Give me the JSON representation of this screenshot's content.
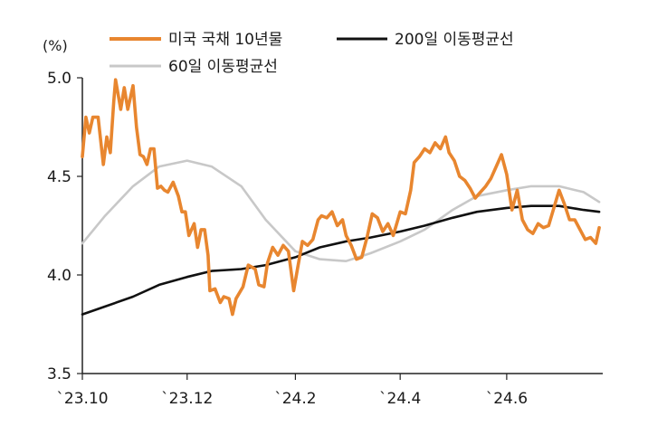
{
  "chart_data": {
    "type": "line",
    "unit_label": "(%)",
    "xlabel": "",
    "ylabel": "",
    "ylim": [
      3.5,
      5.0
    ],
    "yticks": [
      "5.0",
      "4.5",
      "4.0",
      "3.5"
    ],
    "ytick_values": [
      5.0,
      4.5,
      4.0,
      3.5
    ],
    "xlim": [
      "2023-10-02",
      "2024-07-26"
    ],
    "xticks": [
      {
        "label": "`23.10",
        "date": "2023-10-02"
      },
      {
        "label": "`23.12",
        "date": "2023-12-01"
      },
      {
        "label": "`24.2",
        "date": "2024-02-01"
      },
      {
        "label": "`24.4",
        "date": "2024-04-01"
      },
      {
        "label": "`24.6",
        "date": "2024-06-01"
      }
    ],
    "grid": false,
    "legend_position": "top",
    "series": [
      {
        "name": "미국 국채 10년물",
        "color": "#e8862f",
        "points": [
          [
            "2023-10-02",
            4.6
          ],
          [
            "2023-10-04",
            4.8
          ],
          [
            "2023-10-06",
            4.72
          ],
          [
            "2023-10-08",
            4.8
          ],
          [
            "2023-10-11",
            4.8
          ],
          [
            "2023-10-14",
            4.56
          ],
          [
            "2023-10-16",
            4.7
          ],
          [
            "2023-10-18",
            4.62
          ],
          [
            "2023-10-20",
            4.88
          ],
          [
            "2023-10-21",
            4.99
          ],
          [
            "2023-10-24",
            4.84
          ],
          [
            "2023-10-26",
            4.95
          ],
          [
            "2023-10-28",
            4.84
          ],
          [
            "2023-10-31",
            4.96
          ],
          [
            "2023-11-02",
            4.75
          ],
          [
            "2023-11-04",
            4.61
          ],
          [
            "2023-11-06",
            4.6
          ],
          [
            "2023-11-08",
            4.56
          ],
          [
            "2023-11-10",
            4.64
          ],
          [
            "2023-11-12",
            4.64
          ],
          [
            "2023-11-14",
            4.44
          ],
          [
            "2023-11-16",
            4.45
          ],
          [
            "2023-11-18",
            4.43
          ],
          [
            "2023-11-20",
            4.42
          ],
          [
            "2023-11-23",
            4.47
          ],
          [
            "2023-11-26",
            4.4
          ],
          [
            "2023-11-28",
            4.32
          ],
          [
            "2023-11-30",
            4.32
          ],
          [
            "2023-12-02",
            4.2
          ],
          [
            "2023-12-05",
            4.26
          ],
          [
            "2023-12-07",
            4.14
          ],
          [
            "2023-12-09",
            4.23
          ],
          [
            "2023-12-11",
            4.23
          ],
          [
            "2023-12-13",
            4.1
          ],
          [
            "2023-12-14",
            3.92
          ],
          [
            "2023-12-17",
            3.93
          ],
          [
            "2023-12-20",
            3.86
          ],
          [
            "2023-12-22",
            3.89
          ],
          [
            "2023-12-25",
            3.88
          ],
          [
            "2023-12-27",
            3.8
          ],
          [
            "2023-12-29",
            3.88
          ],
          [
            "2024-01-02",
            3.94
          ],
          [
            "2024-01-05",
            4.05
          ],
          [
            "2024-01-09",
            4.03
          ],
          [
            "2024-01-11",
            3.95
          ],
          [
            "2024-01-14",
            3.94
          ],
          [
            "2024-01-16",
            4.06
          ],
          [
            "2024-01-19",
            4.14
          ],
          [
            "2024-01-22",
            4.1
          ],
          [
            "2024-01-25",
            4.15
          ],
          [
            "2024-01-28",
            4.12
          ],
          [
            "2024-01-31",
            3.92
          ],
          [
            "2024-02-02",
            4.02
          ],
          [
            "2024-02-05",
            4.17
          ],
          [
            "2024-02-08",
            4.15
          ],
          [
            "2024-02-11",
            4.18
          ],
          [
            "2024-02-14",
            4.28
          ],
          [
            "2024-02-16",
            4.3
          ],
          [
            "2024-02-19",
            4.29
          ],
          [
            "2024-02-22",
            4.32
          ],
          [
            "2024-02-25",
            4.25
          ],
          [
            "2024-02-28",
            4.28
          ],
          [
            "2024-03-01",
            4.2
          ],
          [
            "2024-03-04",
            4.15
          ],
          [
            "2024-03-07",
            4.08
          ],
          [
            "2024-03-10",
            4.09
          ],
          [
            "2024-03-13",
            4.19
          ],
          [
            "2024-03-16",
            4.31
          ],
          [
            "2024-03-19",
            4.29
          ],
          [
            "2024-03-22",
            4.22
          ],
          [
            "2024-03-25",
            4.26
          ],
          [
            "2024-03-28",
            4.2
          ],
          [
            "2024-04-01",
            4.32
          ],
          [
            "2024-04-04",
            4.31
          ],
          [
            "2024-04-07",
            4.43
          ],
          [
            "2024-04-09",
            4.57
          ],
          [
            "2024-04-12",
            4.6
          ],
          [
            "2024-04-15",
            4.64
          ],
          [
            "2024-04-18",
            4.62
          ],
          [
            "2024-04-21",
            4.67
          ],
          [
            "2024-04-24",
            4.64
          ],
          [
            "2024-04-27",
            4.7
          ],
          [
            "2024-04-29",
            4.62
          ],
          [
            "2024-05-02",
            4.58
          ],
          [
            "2024-05-05",
            4.5
          ],
          [
            "2024-05-08",
            4.48
          ],
          [
            "2024-05-11",
            4.44
          ],
          [
            "2024-05-14",
            4.39
          ],
          [
            "2024-05-17",
            4.42
          ],
          [
            "2024-05-20",
            4.45
          ],
          [
            "2024-05-23",
            4.49
          ],
          [
            "2024-05-26",
            4.55
          ],
          [
            "2024-05-29",
            4.61
          ],
          [
            "2024-06-01",
            4.51
          ],
          [
            "2024-06-04",
            4.33
          ],
          [
            "2024-06-07",
            4.43
          ],
          [
            "2024-06-10",
            4.28
          ],
          [
            "2024-06-13",
            4.23
          ],
          [
            "2024-06-16",
            4.21
          ],
          [
            "2024-06-19",
            4.26
          ],
          [
            "2024-06-22",
            4.24
          ],
          [
            "2024-06-25",
            4.25
          ],
          [
            "2024-06-28",
            4.34
          ],
          [
            "2024-07-01",
            4.43
          ],
          [
            "2024-07-04",
            4.36
          ],
          [
            "2024-07-07",
            4.28
          ],
          [
            "2024-07-10",
            4.28
          ],
          [
            "2024-07-13",
            4.23
          ],
          [
            "2024-07-16",
            4.18
          ],
          [
            "2024-07-19",
            4.19
          ],
          [
            "2024-07-22",
            4.16
          ],
          [
            "2024-07-24",
            4.24
          ]
        ]
      },
      {
        "name": "200일 이동평균선",
        "color": "#111111",
        "points": [
          [
            "2023-10-02",
            3.8
          ],
          [
            "2023-10-15",
            3.84
          ],
          [
            "2023-10-31",
            3.89
          ],
          [
            "2023-11-15",
            3.95
          ],
          [
            "2023-12-01",
            3.99
          ],
          [
            "2023-12-15",
            4.02
          ],
          [
            "2024-01-01",
            4.03
          ],
          [
            "2024-01-15",
            4.05
          ],
          [
            "2024-02-01",
            4.09
          ],
          [
            "2024-02-15",
            4.14
          ],
          [
            "2024-03-01",
            4.17
          ],
          [
            "2024-03-15",
            4.19
          ],
          [
            "2024-04-01",
            4.22
          ],
          [
            "2024-04-15",
            4.25
          ],
          [
            "2024-05-01",
            4.29
          ],
          [
            "2024-05-15",
            4.32
          ],
          [
            "2024-06-01",
            4.34
          ],
          [
            "2024-06-15",
            4.35
          ],
          [
            "2024-07-01",
            4.35
          ],
          [
            "2024-07-15",
            4.33
          ],
          [
            "2024-07-24",
            4.32
          ]
        ]
      },
      {
        "name": "60일 이동평균선",
        "color": "#c8c8c8",
        "points": [
          [
            "2023-10-02",
            4.16
          ],
          [
            "2023-10-15",
            4.3
          ],
          [
            "2023-10-31",
            4.45
          ],
          [
            "2023-11-15",
            4.55
          ],
          [
            "2023-12-01",
            4.58
          ],
          [
            "2023-12-15",
            4.55
          ],
          [
            "2024-01-01",
            4.45
          ],
          [
            "2024-01-15",
            4.28
          ],
          [
            "2024-02-01",
            4.12
          ],
          [
            "2024-02-15",
            4.08
          ],
          [
            "2024-03-01",
            4.07
          ],
          [
            "2024-03-15",
            4.11
          ],
          [
            "2024-04-01",
            4.17
          ],
          [
            "2024-04-15",
            4.23
          ],
          [
            "2024-05-01",
            4.33
          ],
          [
            "2024-05-15",
            4.4
          ],
          [
            "2024-06-01",
            4.43
          ],
          [
            "2024-06-15",
            4.45
          ],
          [
            "2024-07-01",
            4.45
          ],
          [
            "2024-07-15",
            4.42
          ],
          [
            "2024-07-24",
            4.37
          ]
        ]
      }
    ]
  }
}
